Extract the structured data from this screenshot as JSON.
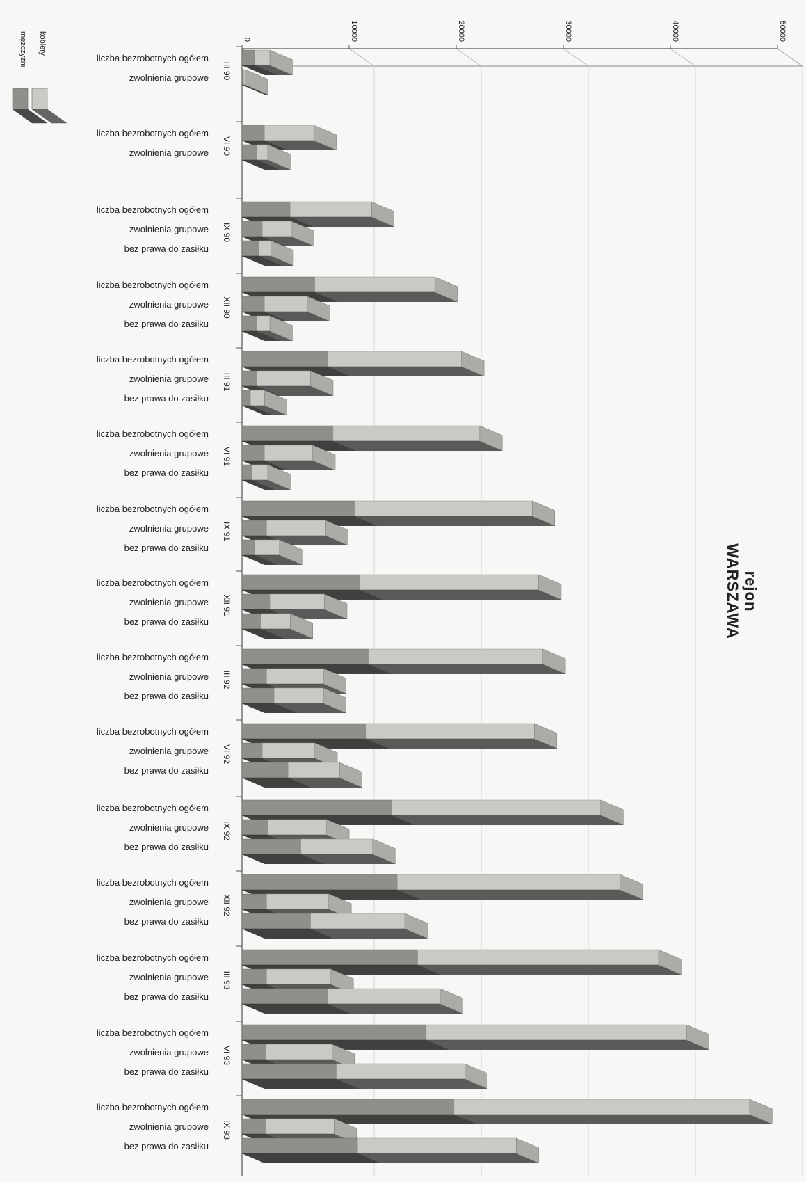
{
  "chart_data": {
    "type": "bar",
    "orientation": "horizontal-stacked-3d",
    "title": "rejon WARSZAWA",
    "title_lines": [
      "rejon",
      "WARSZAWA"
    ],
    "value_axis": {
      "min": 0,
      "max": 50000,
      "ticks": [
        "0",
        "10000",
        "20000",
        "30000",
        "40000",
        "50000"
      ],
      "tick_values": [
        0,
        10000,
        20000,
        30000,
        40000,
        50000
      ]
    },
    "legend": [
      {
        "name": "kobiety",
        "color": "#c9c9c5"
      },
      {
        "name": "mężczyźni",
        "color": "#8f8f8b"
      }
    ],
    "category_names": [
      "liczba bezrobotnych ogółem",
      "zwolnienia grupowe",
      "bez prawa do zasiłku"
    ],
    "series": [
      {
        "name": "mężczyźni",
        "color": "#8f8f8b"
      },
      {
        "name": "kobiety",
        "color": "#c9c9c5"
      }
    ],
    "periods": [
      {
        "label": "III 90",
        "bars": [
          {
            "category": "liczba bezrobotnych ogółem",
            "values": [
              1200,
              1400
            ],
            "total": 2600
          },
          {
            "category": "zwolnienia grupowe",
            "values": [
              150,
              150
            ],
            "total": 300
          }
        ]
      },
      {
        "label": "VI 90",
        "bars": [
          {
            "category": "liczba bezrobotnych ogółem",
            "values": [
              2100,
              4600
            ],
            "total": 6700
          },
          {
            "category": "zwolnienia grupowe",
            "values": [
              1400,
              1000
            ],
            "total": 2400
          }
        ]
      },
      {
        "label": "IX 90",
        "bars": [
          {
            "category": "liczba bezrobotnych ogółem",
            "values": [
              4500,
              7600
            ],
            "total": 12100
          },
          {
            "category": "zwolnienia grupowe",
            "values": [
              1900,
              2700
            ],
            "total": 4600
          },
          {
            "category": "bez prawa do zasiłku",
            "values": [
              1600,
              1100
            ],
            "total": 2700
          }
        ]
      },
      {
        "label": "XII 90",
        "bars": [
          {
            "category": "liczba bezrobotnych ogółem",
            "values": [
              6800,
              11200
            ],
            "total": 18000
          },
          {
            "category": "zwolnienia grupowe",
            "values": [
              2100,
              4000
            ],
            "total": 6100
          },
          {
            "category": "bez prawa do zasiłku",
            "values": [
              1400,
              1200
            ],
            "total": 2600
          }
        ]
      },
      {
        "label": "III 91",
        "bars": [
          {
            "category": "liczba bezrobotnych ogółem",
            "values": [
              8000,
              12500
            ],
            "total": 20500
          },
          {
            "category": "zwolnienia grupowe",
            "values": [
              1400,
              5000
            ],
            "total": 6400
          },
          {
            "category": "bez prawa do zasiłku",
            "values": [
              800,
              1300
            ],
            "total": 2100
          }
        ]
      },
      {
        "label": "VI 91",
        "bars": [
          {
            "category": "liczba bezrobotnych ogółem",
            "values": [
              8500,
              13700
            ],
            "total": 22200
          },
          {
            "category": "zwolnienia grupowe",
            "values": [
              2100,
              4500
            ],
            "total": 6600
          },
          {
            "category": "bez prawa do zasiłku",
            "values": [
              900,
              1500
            ],
            "total": 2400
          }
        ]
      },
      {
        "label": "IX 91",
        "bars": [
          {
            "category": "liczba bezrobotnych ogółem",
            "values": [
              10500,
              16600
            ],
            "total": 27100
          },
          {
            "category": "zwolnienia grupowe",
            "values": [
              2300,
              5500
            ],
            "total": 7800
          },
          {
            "category": "bez prawa do zasiłku",
            "values": [
              1200,
              2300
            ],
            "total": 3500
          }
        ]
      },
      {
        "label": "XII 91",
        "bars": [
          {
            "category": "liczba bezrobotnych ogółem",
            "values": [
              11000,
              16700
            ],
            "total": 27700
          },
          {
            "category": "zwolnienia grupowe",
            "values": [
              2600,
              5100
            ],
            "total": 7700
          },
          {
            "category": "bez prawa do zasiłku",
            "values": [
              1800,
              2700
            ],
            "total": 4500
          }
        ]
      },
      {
        "label": "III 92",
        "bars": [
          {
            "category": "liczba bezrobotnych ogółem",
            "values": [
              11800,
              16300
            ],
            "total": 28100
          },
          {
            "category": "zwolnienia grupowe",
            "values": [
              2300,
              5300
            ],
            "total": 7600
          },
          {
            "category": "bez prawa do zasiłku",
            "values": [
              3000,
              4600
            ],
            "total": 7600
          }
        ]
      },
      {
        "label": "VI 92",
        "bars": [
          {
            "category": "liczba bezrobotnych ogółem",
            "values": [
              11600,
              15700
            ],
            "total": 27300
          },
          {
            "category": "zwolnienia grupowe",
            "values": [
              1900,
              4900
            ],
            "total": 6800
          },
          {
            "category": "bez prawa do zasiłku",
            "values": [
              4300,
              4800
            ],
            "total": 9100
          }
        ]
      },
      {
        "label": "IX 92",
        "bars": [
          {
            "category": "liczba bezrobotnych ogółem",
            "values": [
              14000,
              19500
            ],
            "total": 33500
          },
          {
            "category": "zwolnienia grupowe",
            "values": [
              2400,
              5500
            ],
            "total": 7900
          },
          {
            "category": "bez prawa do zasiłku",
            "values": [
              5500,
              6700
            ],
            "total": 12200
          }
        ]
      },
      {
        "label": "XII 92",
        "bars": [
          {
            "category": "liczba bezrobotnych ogółem",
            "values": [
              14500,
              20800
            ],
            "total": 35300
          },
          {
            "category": "zwolnienia grupowe",
            "values": [
              2300,
              5800
            ],
            "total": 8100
          },
          {
            "category": "bez prawa do zasiłku",
            "values": [
              6400,
              8800
            ],
            "total": 15200
          }
        ]
      },
      {
        "label": "III 93",
        "bars": [
          {
            "category": "liczba bezrobotnych ogółem",
            "values": [
              16400,
              22500
            ],
            "total": 38900
          },
          {
            "category": "zwolnienia grupowe",
            "values": [
              2300,
              6000
            ],
            "total": 8300
          },
          {
            "category": "bez prawa do zasiłku",
            "values": [
              8000,
              10500
            ],
            "total": 18500
          }
        ]
      },
      {
        "label": "VI 93",
        "bars": [
          {
            "category": "liczba bezrobotnych ogółem",
            "values": [
              17200,
              24300
            ],
            "total": 41500
          },
          {
            "category": "zwolnienia grupowe",
            "values": [
              2200,
              6200
            ],
            "total": 8400
          },
          {
            "category": "bez prawa do zasiłku",
            "values": [
              8800,
              12000
            ],
            "total": 20800
          }
        ]
      },
      {
        "label": "IX 93",
        "bars": [
          {
            "category": "liczba bezrobotnych ogółem",
            "values": [
              19800,
              27600
            ],
            "total": 47400
          },
          {
            "category": "zwolnienia grupowe",
            "values": [
              2200,
              6400
            ],
            "total": 8600
          },
          {
            "category": "bez prawa do zasiłku",
            "values": [
              10800,
              14800
            ],
            "total": 25600
          }
        ]
      }
    ]
  }
}
